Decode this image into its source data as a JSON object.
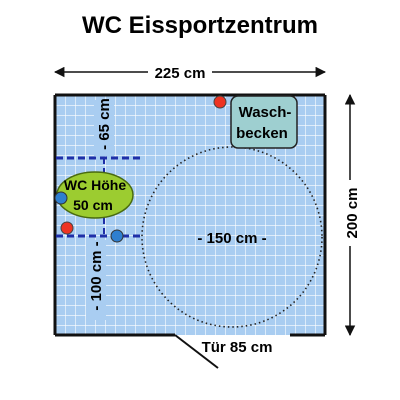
{
  "title": "WC Eissportzentrum",
  "dimensions": {
    "width": "225 cm",
    "height": "200 cm",
    "upper_offset": "- 65 cm",
    "lower_offset": "- 100 cm -",
    "turning_circle": "- 150 cm -",
    "door": "Tür 85 cm"
  },
  "fixtures": {
    "sink_line1": "Wasch-",
    "sink_line2": "becken",
    "wc_line1": "WC Höhe",
    "wc_line2": "50 cm"
  },
  "colors": {
    "tiles": "#a9cdf1",
    "tile_grid": "#ffffff",
    "wall": "#111111",
    "sink_fill": "#9ecfd0",
    "wc_fill": "#9ccc30",
    "red_marker": "#ee3322",
    "blue_marker": "#2f7fd0",
    "dashed_line": "#1f2fa8"
  }
}
